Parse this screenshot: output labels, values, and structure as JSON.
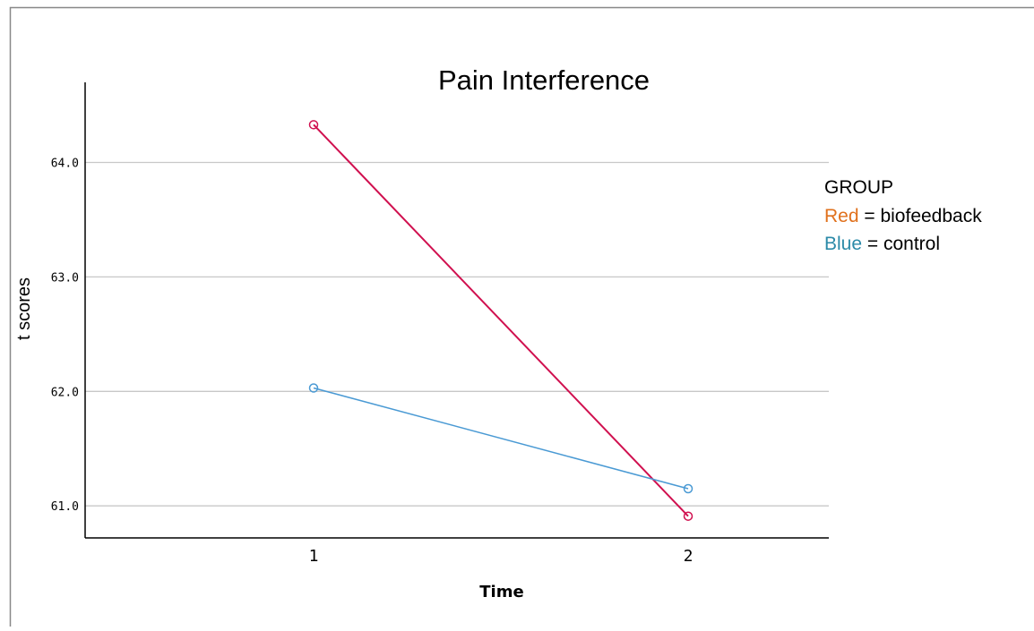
{
  "colors": {
    "biofeedback_line": "#d0104f",
    "control_line": "#4a9ad4",
    "legend_red_word": "#e0711d",
    "legend_blue_word": "#2b8aa8",
    "gridline": "#c8c8c8",
    "frame": "#888888"
  },
  "legend": {
    "title": "GROUP",
    "red_word": "Red",
    "red_rest": " = biofeedback",
    "red_text": "Red = biofeedback",
    "blue_word": "Blue",
    "blue_rest": " = control",
    "blue_text": "Blue = control",
    "placement": "right"
  },
  "chart_data": {
    "type": "line",
    "title": "Pain Interference",
    "xlabel": "Time",
    "ylabel": "t scores",
    "categories": [
      "1",
      "2"
    ],
    "yticks": [
      "61.0",
      "62.0",
      "63.0",
      "64.0"
    ],
    "ylim": [
      60.72,
      64.7
    ],
    "grid": true,
    "series": [
      {
        "values": [
          64.33,
          60.91
        ],
        "color": "#d0104f",
        "marker": "open-circle"
      },
      {
        "values": [
          62.03,
          61.15
        ],
        "color": "#4a9ad4",
        "marker": "open-circle"
      }
    ]
  }
}
